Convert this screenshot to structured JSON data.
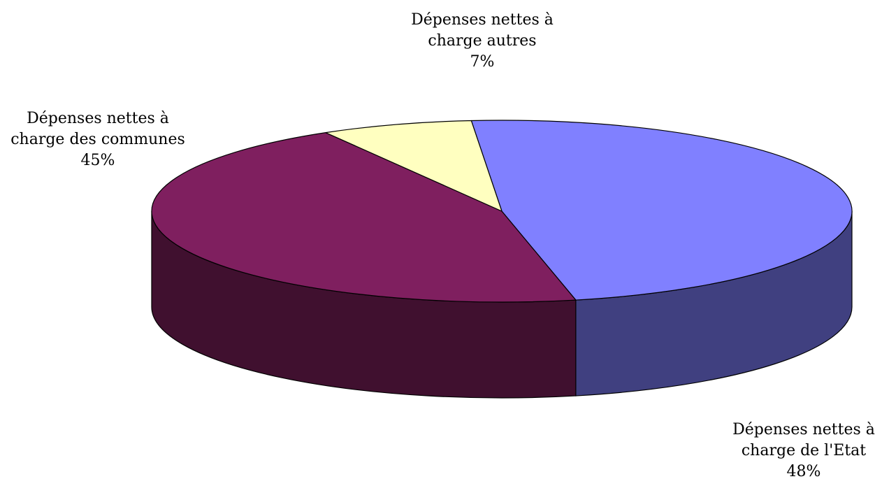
{
  "chart_data": {
    "type": "pie",
    "style": "3d",
    "slices": [
      {
        "name": "Dépenses nettes à charge de l'Etat",
        "value": 48,
        "label_lines": [
          "Dépenses nettes à",
          "charge de l'Etat",
          "48%"
        ],
        "top_color": "#8080FF",
        "side_color": "#404080"
      },
      {
        "name": "Dépenses nettes à charge des communes",
        "value": 45,
        "label_lines": [
          "Dépenses nettes à",
          "charge des communes",
          "45%"
        ],
        "top_color": "#7F1F5F",
        "side_color": "#40102F"
      },
      {
        "name": "Dépenses nettes à charge autres",
        "value": 7,
        "label_lines": [
          "Dépenses nettes à",
          "charge autres",
          "7%"
        ],
        "top_color": "#FFFFC0",
        "side_color": "#808060"
      }
    ]
  }
}
